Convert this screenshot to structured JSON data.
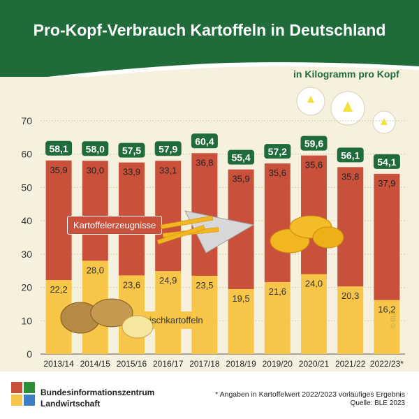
{
  "header": {
    "title": "Pro-Kopf-Verbrauch Kartoffeln in Deutschland",
    "unit": "in Kilogramm pro Kopf"
  },
  "legend": {
    "processed": "Kartoffelerzeugnisse",
    "fresh": "Frischkartoffeln"
  },
  "copyright": "© BLE",
  "footer": {
    "org_line1": "Bundesinformationszentrum",
    "org_line2": "Landwirtschaft",
    "note": "* Angaben in Kartoffelwert 2022/2023 vorläufiges Ergebnis",
    "source": "Quelle: BLE 2023"
  },
  "colors": {
    "header_green": "#1f6b3a",
    "processed": "#c9503a",
    "fresh": "#f7c548",
    "total_badge": "#1f6b3a"
  },
  "chart_data": {
    "type": "bar",
    "stacked": true,
    "categories": [
      "2013/14",
      "2014/15",
      "2015/16",
      "2016/17",
      "2017/18",
      "2018/19",
      "2019/20",
      "2020/21",
      "2021/22",
      "2022/23*"
    ],
    "series": [
      {
        "name": "Frischkartoffeln",
        "values": [
          22.2,
          28.0,
          23.6,
          24.9,
          23.5,
          19.5,
          21.6,
          24.0,
          20.3,
          16.2
        ]
      },
      {
        "name": "Kartoffelerzeugnisse",
        "values": [
          35.9,
          30.0,
          33.9,
          33.1,
          36.8,
          35.9,
          35.6,
          35.6,
          35.8,
          37.9
        ]
      }
    ],
    "totals": [
      58.1,
      58.0,
      57.5,
      57.9,
      60.4,
      55.4,
      57.2,
      59.6,
      56.1,
      54.1
    ],
    "ylim": [
      0,
      70
    ],
    "yticks": [
      0,
      10,
      20,
      30,
      40,
      50,
      60,
      70
    ],
    "grid": true,
    "ylabel": "in Kilogramm pro Kopf"
  }
}
